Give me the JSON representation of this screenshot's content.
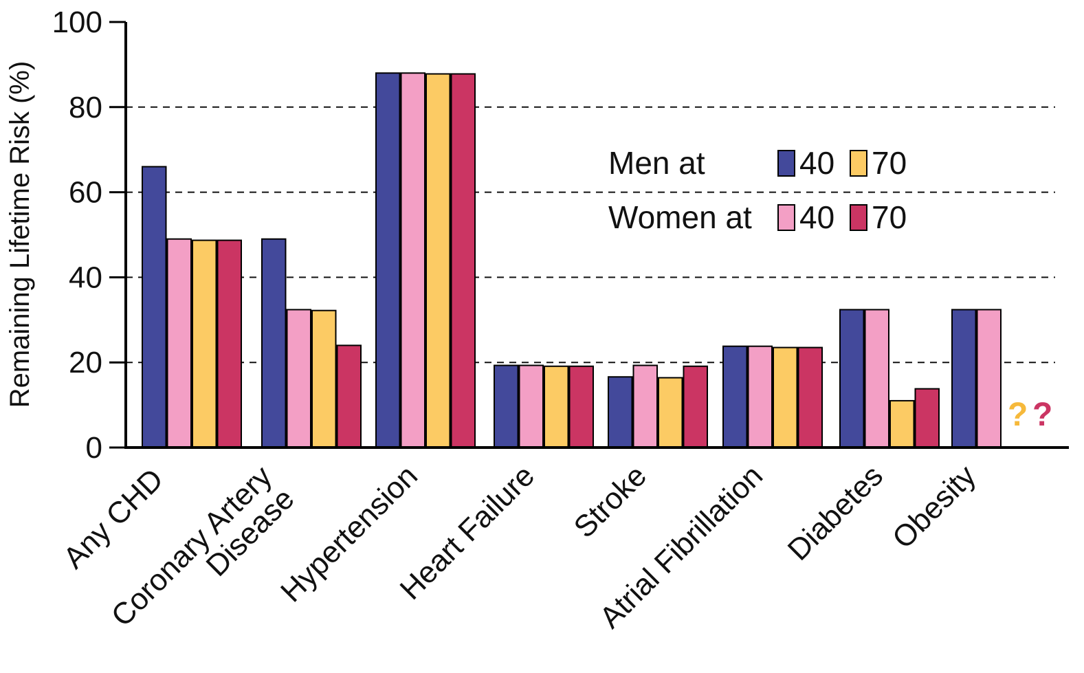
{
  "chart_data": {
    "type": "bar",
    "ylabel": "Remaining Lifetime Risk (%)",
    "xlabel": "",
    "ylim": [
      0,
      100
    ],
    "yticks": [
      0,
      20,
      40,
      60,
      80,
      100
    ],
    "gridlines": "dashed",
    "categories": [
      [
        "Any CHD"
      ],
      [
        "Coronary Artery",
        "Disease"
      ],
      [
        "Hypertension"
      ],
      [
        "Heart Failure"
      ],
      [
        "Stroke"
      ],
      [
        "Atrial Fibrillation"
      ],
      [
        "Diabetes"
      ],
      [
        "Obesity"
      ]
    ],
    "series": [
      {
        "name": "Men at 40",
        "color": "#43499b",
        "values": [
          66,
          49,
          88,
          19.3,
          16.6,
          23.8,
          32.4,
          32.4
        ]
      },
      {
        "name": "Women at 40",
        "color": "#f39fc5",
        "values": [
          49,
          32.4,
          88,
          19.3,
          19.3,
          23.8,
          32.4,
          32.4
        ]
      },
      {
        "name": "Men at 70",
        "color": "#fccb64",
        "values": [
          48.7,
          32.2,
          87.8,
          19.1,
          16.4,
          23.5,
          11,
          null
        ]
      },
      {
        "name": "Women at 70",
        "color": "#cb3563",
        "values": [
          48.7,
          24,
          87.8,
          19.1,
          19.1,
          23.5,
          13.8,
          null
        ]
      }
    ],
    "legend": {
      "placement": "top-right",
      "rows": [
        {
          "label": "Men at",
          "items": [
            {
              "series": 0,
              "text": "40"
            },
            {
              "series": 2,
              "text": "70"
            }
          ]
        },
        {
          "label": "Women at",
          "items": [
            {
              "series": 1,
              "text": "40"
            },
            {
              "series": 3,
              "text": "70"
            }
          ]
        }
      ]
    },
    "annotations": [
      {
        "text": "?",
        "color": "#f6b93b"
      },
      {
        "text": "?",
        "color": "#cb3563"
      }
    ]
  }
}
